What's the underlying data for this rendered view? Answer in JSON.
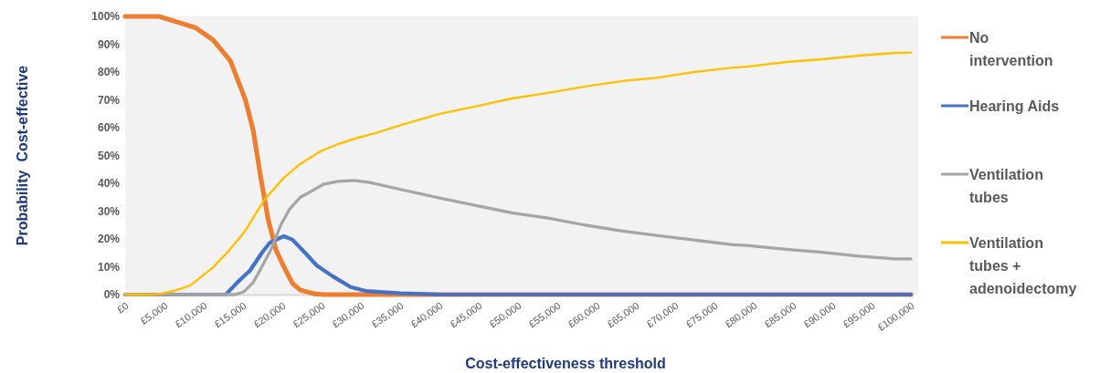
{
  "chart_data": {
    "type": "line",
    "xlabel": "Cost-effectiveness threshold",
    "ylabel": "Probability  Cost-effective",
    "xlim": [
      0,
      100000
    ],
    "xticks": [
      {
        "value": 0,
        "label": "£0"
      },
      {
        "value": 5000,
        "label": "£5,000"
      },
      {
        "value": 10000,
        "label": "£10,000"
      },
      {
        "value": 15000,
        "label": "£15,000"
      },
      {
        "value": 20000,
        "label": "£20,000"
      },
      {
        "value": 25000,
        "label": "£25,000"
      },
      {
        "value": 30000,
        "label": "£30,000"
      },
      {
        "value": 35000,
        "label": "£35,000"
      },
      {
        "value": 40000,
        "label": "£40,000"
      },
      {
        "value": 45000,
        "label": "£45,000"
      },
      {
        "value": 50000,
        "label": "£50,000"
      },
      {
        "value": 55000,
        "label": "£55,000"
      },
      {
        "value": 60000,
        "label": "£60,000"
      },
      {
        "value": 65000,
        "label": "£65,000"
      },
      {
        "value": 70000,
        "label": "£70,000"
      },
      {
        "value": 75000,
        "label": "£75,000"
      },
      {
        "value": 80000,
        "label": "£80,000"
      },
      {
        "value": 85000,
        "label": "£85,000"
      },
      {
        "value": 90000,
        "label": "£90,000"
      },
      {
        "value": 95000,
        "label": "£95,000"
      },
      {
        "value": 100000,
        "label": "£100,000"
      }
    ],
    "ylim": [
      0,
      100
    ],
    "yticks": [
      {
        "value": 0,
        "label": "0%"
      },
      {
        "value": 10,
        "label": "10%"
      },
      {
        "value": 20,
        "label": "20%"
      },
      {
        "value": 30,
        "label": "30%"
      },
      {
        "value": 40,
        "label": "40%"
      },
      {
        "value": 50,
        "label": "50%"
      },
      {
        "value": 60,
        "label": "60%"
      },
      {
        "value": 70,
        "label": "70%"
      },
      {
        "value": 80,
        "label": "80%"
      },
      {
        "value": 90,
        "label": "90%"
      },
      {
        "value": 100,
        "label": "100%"
      }
    ],
    "grid": false,
    "legend": "right",
    "series": [
      {
        "name": "No intervention",
        "color": "#ed7d31",
        "x": [
          0,
          3000,
          4300,
          6600,
          8900,
          11200,
          13400,
          15300,
          16300,
          17200,
          18200,
          19200,
          20200,
          21300,
          22300,
          24000,
          25200,
          100000
        ],
        "values": [
          100,
          100,
          100,
          98,
          96,
          91.5,
          84,
          70,
          59,
          43,
          27,
          16,
          10,
          4,
          1.6,
          0.3,
          0,
          0
        ]
      },
      {
        "name": "Hearing Aids",
        "color": "#4472c4",
        "x": [
          0,
          12800,
          14300,
          15900,
          17400,
          18400,
          20200,
          21300,
          22900,
          24400,
          26400,
          28700,
          30600,
          35000,
          38000,
          40000,
          100000
        ],
        "values": [
          0,
          0,
          4.4,
          8.7,
          15,
          18.6,
          21,
          19.7,
          15,
          10.4,
          6.6,
          2.7,
          1.3,
          0.5,
          0.2,
          0,
          0
        ]
      },
      {
        "name": "Ventilation tubes",
        "color": "#a5a5a5",
        "x": [
          0,
          14000,
          15100,
          16300,
          17400,
          18600,
          19800,
          20900,
          22300,
          23600,
          25200,
          27100,
          29100,
          31000,
          35200,
          39900,
          44500,
          49200,
          53800,
          58500,
          63100,
          67800,
          72400,
          77100,
          79400,
          84100,
          88700,
          93400,
          98000,
          100000
        ],
        "values": [
          0,
          0,
          1,
          4.4,
          10,
          16.4,
          25,
          30.6,
          35,
          37,
          39.6,
          40.7,
          41,
          40.4,
          37.7,
          34.8,
          32.1,
          29.4,
          27.5,
          25,
          22.9,
          21.2,
          19.6,
          18,
          17.6,
          16.3,
          15.2,
          13.8,
          12.8,
          12.8
        ]
      },
      {
        "name": "Ventilation tubes + adenoidectomy",
        "color": "#ffc000",
        "x": [
          0,
          3500,
          4300,
          6200,
          8300,
          11200,
          13200,
          15300,
          16700,
          17800,
          20200,
          22300,
          24800,
          27100,
          29500,
          31800,
          35200,
          39900,
          44500,
          49200,
          53800,
          58500,
          63100,
          67800,
          72400,
          77100,
          79400,
          84100,
          88700,
          93400,
          98000,
          100000
        ],
        "values": [
          0,
          0,
          0.2,
          1.3,
          3.3,
          9.8,
          15.8,
          23,
          29.5,
          34.4,
          42,
          47,
          51.4,
          54.1,
          56.3,
          58,
          61,
          64.9,
          67.6,
          70.5,
          72.5,
          74.8,
          76.7,
          78,
          80,
          81.5,
          82,
          83.6,
          84.6,
          85.9,
          86.9,
          87
        ]
      }
    ]
  }
}
